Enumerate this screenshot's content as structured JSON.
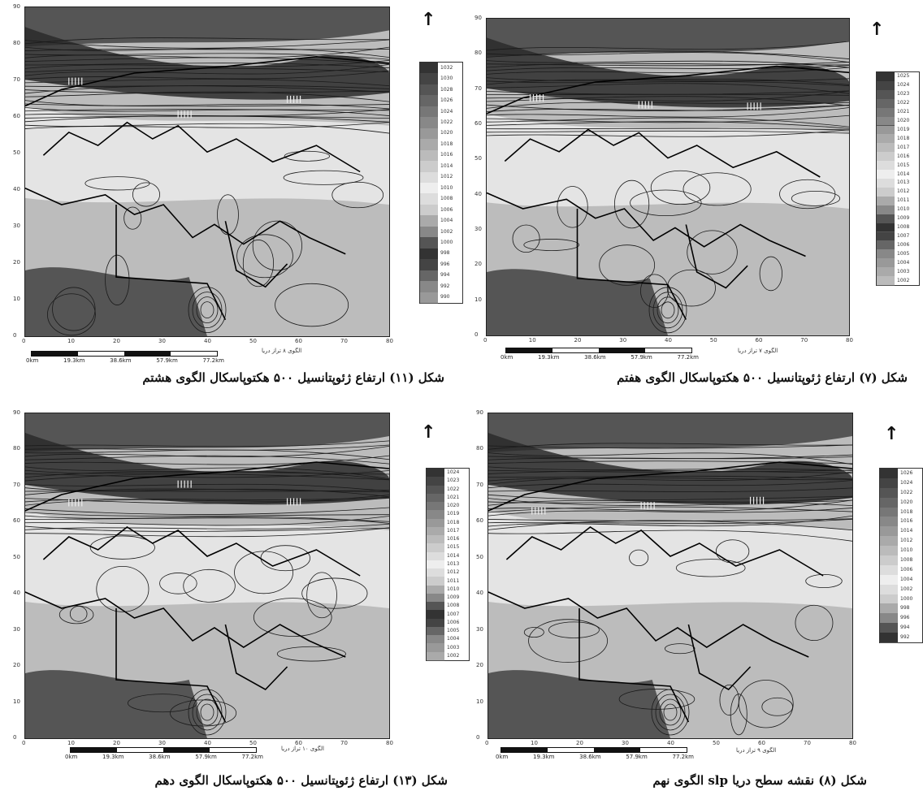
{
  "panels": [
    {
      "id": "fig11",
      "caption": "شکل (۱۱) ارتفاع ژئوپتانسیل ۵۰۰ هکتوپاسکال الگوی هشتم",
      "pattern_label": "الگوی ۸ تراز دریا",
      "north": "↑",
      "legend": [
        "1032",
        "1030",
        "1028",
        "1026",
        "1024",
        "1022",
        "1020",
        "1018",
        "1016",
        "1014",
        "1012",
        "1010",
        "1008",
        "1006",
        "1004",
        "1002",
        "1000",
        "998",
        "996",
        "994",
        "992",
        "990"
      ]
    },
    {
      "id": "fig7",
      "caption": "شکل (۷) ارتفاع ژئوپتانسیل ۵۰۰ هکتوپاسکال الگوی هفتم",
      "pattern_label": "الگوی ۷ تراز دریا",
      "north": "↑",
      "legend": [
        "1025",
        "1024",
        "1023",
        "1022",
        "1021",
        "1020",
        "1019",
        "1018",
        "1017",
        "1016",
        "1015",
        "1014",
        "1013",
        "1012",
        "1011",
        "1010",
        "1009",
        "1008",
        "1007",
        "1006",
        "1005",
        "1004",
        "1003",
        "1002"
      ]
    },
    {
      "id": "fig13",
      "caption": "شکل (۱۳) ارتفاع ژئوپتانسیل ۵۰۰ هکتوپاسکال الگوی دهم",
      "pattern_label": "الگوی ۱۰ تراز دریا",
      "north": "↑",
      "legend": [
        "1024",
        "1023",
        "1022",
        "1021",
        "1020",
        "1019",
        "1018",
        "1017",
        "1016",
        "1015",
        "1014",
        "1013",
        "1012",
        "1011",
        "1010",
        "1009",
        "1008",
        "1007",
        "1006",
        "1005",
        "1004",
        "1003",
        "1002"
      ]
    },
    {
      "id": "fig8",
      "caption": "شکل (۸) نقشه سطح دریا slp الگوی نهم",
      "pattern_label": "الگوی ۹ تراز دریا",
      "north": "↑",
      "legend": [
        "1026",
        "1024",
        "1022",
        "1020",
        "1018",
        "1016",
        "1014",
        "1012",
        "1010",
        "1008",
        "1006",
        "1004",
        "1002",
        "1000",
        "998",
        "996",
        "994",
        "992"
      ]
    }
  ],
  "axes": {
    "y_ticks": [
      "90",
      "80",
      "70",
      "60",
      "50",
      "40",
      "30",
      "20",
      "10",
      "0"
    ],
    "x_ticks": [
      "0",
      "10",
      "20",
      "30",
      "40",
      "50",
      "60",
      "70",
      "80"
    ]
  },
  "scale": {
    "labels": [
      "0km",
      "19.3km",
      "38.6km",
      "57.9km",
      "77.2km"
    ]
  },
  "colors": {
    "darkest": "#2b2b2b",
    "dark": "#555555",
    "mid": "#8a8a8a",
    "light": "#bcbcbc",
    "lightest": "#e4e4e4",
    "white": "#ffffff"
  }
}
